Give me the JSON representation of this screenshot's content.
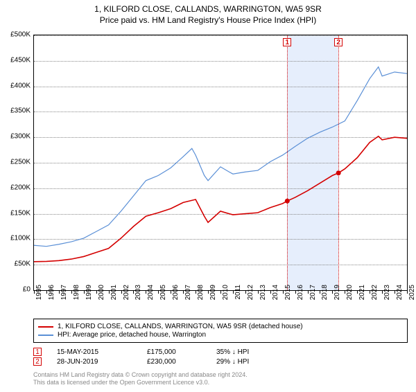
{
  "title": "1, KILFORD CLOSE, CALLANDS, WARRINGTON, WA5 9SR",
  "subtitle": "Price paid vs. HM Land Registry's House Price Index (HPI)",
  "chart": {
    "type": "line",
    "background_color": "#ffffff",
    "grid_color": "#888888",
    "border_color": "#000000",
    "ylabel_prefix": "£",
    "ylim": [
      0,
      500000
    ],
    "ytick_step": 50000,
    "yticks": [
      "£0",
      "£50K",
      "£100K",
      "£150K",
      "£200K",
      "£250K",
      "£300K",
      "£350K",
      "£400K",
      "£450K",
      "£500K"
    ],
    "xlim": [
      1995,
      2025
    ],
    "xticks": [
      1995,
      1996,
      1997,
      1998,
      1999,
      2000,
      2001,
      2002,
      2003,
      2004,
      2005,
      2006,
      2007,
      2008,
      2009,
      2010,
      2011,
      2012,
      2013,
      2014,
      2015,
      2016,
      2017,
      2018,
      2019,
      2020,
      2021,
      2022,
      2023,
      2024,
      2025
    ],
    "shade": {
      "from": 2015.37,
      "to": 2019.49,
      "color": "#e6eefc"
    },
    "series": [
      {
        "name": "1, KILFORD CLOSE, CALLANDS, WARRINGTON, WA5 9SR (detached house)",
        "color": "#d40000",
        "line_width": 1.6,
        "data": [
          [
            1995,
            56000
          ],
          [
            1996,
            56500
          ],
          [
            1997,
            58000
          ],
          [
            1998,
            61000
          ],
          [
            1999,
            66000
          ],
          [
            2000,
            74000
          ],
          [
            2001,
            82000
          ],
          [
            2002,
            102000
          ],
          [
            2003,
            125000
          ],
          [
            2004,
            145000
          ],
          [
            2005,
            152000
          ],
          [
            2006,
            160000
          ],
          [
            2007,
            172000
          ],
          [
            2008,
            178000
          ],
          [
            2008.7,
            145000
          ],
          [
            2009,
            133000
          ],
          [
            2010,
            155000
          ],
          [
            2010.7,
            150000
          ],
          [
            2011,
            148000
          ],
          [
            2012,
            150000
          ],
          [
            2013,
            152000
          ],
          [
            2014,
            162000
          ],
          [
            2015,
            170000
          ],
          [
            2015.37,
            175000
          ],
          [
            2016,
            182000
          ],
          [
            2017,
            195000
          ],
          [
            2018,
            210000
          ],
          [
            2019,
            225000
          ],
          [
            2019.49,
            230000
          ],
          [
            2020,
            238000
          ],
          [
            2021,
            260000
          ],
          [
            2022,
            290000
          ],
          [
            2022.7,
            302000
          ],
          [
            2023,
            295000
          ],
          [
            2024,
            300000
          ],
          [
            2025,
            298000
          ]
        ]
      },
      {
        "name": "HPI: Average price, detached house, Warrington",
        "color": "#5a8fd6",
        "line_width": 1.2,
        "data": [
          [
            1995,
            88000
          ],
          [
            1996,
            86000
          ],
          [
            1997,
            90000
          ],
          [
            1998,
            95000
          ],
          [
            1999,
            102000
          ],
          [
            2000,
            115000
          ],
          [
            2001,
            128000
          ],
          [
            2002,
            155000
          ],
          [
            2003,
            185000
          ],
          [
            2004,
            215000
          ],
          [
            2005,
            225000
          ],
          [
            2006,
            240000
          ],
          [
            2007,
            262000
          ],
          [
            2007.7,
            278000
          ],
          [
            2008,
            265000
          ],
          [
            2008.7,
            225000
          ],
          [
            2009,
            215000
          ],
          [
            2010,
            242000
          ],
          [
            2010.7,
            232000
          ],
          [
            2011,
            228000
          ],
          [
            2012,
            232000
          ],
          [
            2013,
            235000
          ],
          [
            2014,
            252000
          ],
          [
            2015,
            265000
          ],
          [
            2016,
            282000
          ],
          [
            2017,
            298000
          ],
          [
            2018,
            310000
          ],
          [
            2019,
            320000
          ],
          [
            2020,
            332000
          ],
          [
            2021,
            372000
          ],
          [
            2022,
            415000
          ],
          [
            2022.7,
            438000
          ],
          [
            2023,
            420000
          ],
          [
            2024,
            428000
          ],
          [
            2025,
            425000
          ]
        ]
      }
    ],
    "markers": [
      {
        "label": "1",
        "x": 2015.37,
        "y": 175000
      },
      {
        "label": "2",
        "x": 2019.49,
        "y": 230000
      }
    ]
  },
  "legend": {
    "items": [
      {
        "color": "#d40000",
        "label": "1, KILFORD CLOSE, CALLANDS, WARRINGTON, WA5 9SR (detached house)"
      },
      {
        "color": "#5a8fd6",
        "label": "HPI: Average price, detached house, Warrington"
      }
    ]
  },
  "events": [
    {
      "marker": "1",
      "date": "15-MAY-2015",
      "price": "£175,000",
      "delta": "35% ↓ HPI"
    },
    {
      "marker": "2",
      "date": "28-JUN-2019",
      "price": "£230,000",
      "delta": "29% ↓ HPI"
    }
  ],
  "footer": {
    "line1": "Contains HM Land Registry data © Crown copyright and database right 2024.",
    "line2": "This data is licensed under the Open Government Licence v3.0."
  }
}
